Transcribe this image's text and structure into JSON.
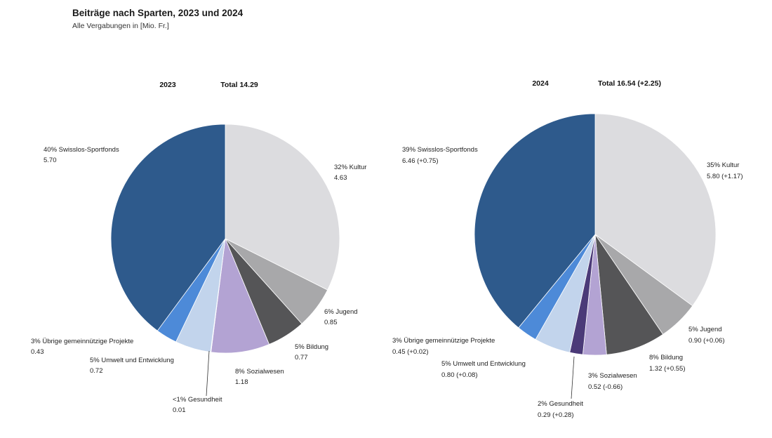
{
  "title": "Beiträge nach Sparten, 2023 und 2024",
  "subtitle": "Alle Vergabungen in [Mio. Fr.]",
  "chart_data": [
    {
      "type": "pie",
      "year": "2023",
      "total_label": "Total 14.29",
      "slices": [
        {
          "name": "Kultur",
          "percent_label": "32%",
          "value": 4.63,
          "value_label": "4.63",
          "color": "#dcdcdf"
        },
        {
          "name": "Jugend",
          "percent_label": "6%",
          "value": 0.85,
          "value_label": "0.85",
          "color": "#a8a8aa"
        },
        {
          "name": "Bildung",
          "percent_label": "5%",
          "value": 0.77,
          "value_label": "0.77",
          "color": "#555557"
        },
        {
          "name": "Sozialwesen",
          "percent_label": "8%",
          "value": 1.18,
          "value_label": "1.18",
          "color": "#b3a3d3"
        },
        {
          "name": "Gesundheit",
          "percent_label": "<1%",
          "value": 0.01,
          "value_label": "0.01",
          "color": "#4b3a78"
        },
        {
          "name": "Umwelt und Entwicklung",
          "percent_label": "5%",
          "value": 0.72,
          "value_label": "0.72",
          "color": "#c2d4ec"
        },
        {
          "name": "Übrige gemeinnützige Projekte",
          "percent_label": "3%",
          "value": 0.43,
          "value_label": "0.43",
          "color": "#4d8ad8"
        },
        {
          "name": "Swisslos-Sportfonds",
          "percent_label": "40%",
          "value": 5.7,
          "value_label": "5.70",
          "color": "#2e5a8c"
        }
      ]
    },
    {
      "type": "pie",
      "year": "2024",
      "total_label": "Total 16.54 (+2.25)",
      "slices": [
        {
          "name": "Kultur",
          "percent_label": "35%",
          "value": 5.8,
          "value_label": "5.80 (+1.17)",
          "color": "#dcdcdf"
        },
        {
          "name": "Jugend",
          "percent_label": "5%",
          "value": 0.9,
          "value_label": "0.90 (+0.06)",
          "color": "#a8a8aa"
        },
        {
          "name": "Bildung",
          "percent_label": "8%",
          "value": 1.32,
          "value_label": "1.32 (+0.55)",
          "color": "#555557"
        },
        {
          "name": "Sozialwesen",
          "percent_label": "3%",
          "value": 0.52,
          "value_label": "0.52 (-0.66)",
          "color": "#b3a3d3"
        },
        {
          "name": "Gesundheit",
          "percent_label": "2%",
          "value": 0.29,
          "value_label": "0.29 (+0.28)",
          "color": "#4b3a78"
        },
        {
          "name": "Umwelt und Entwicklung",
          "percent_label": "5%",
          "value": 0.8,
          "value_label": "0.80 (+0.08)",
          "color": "#c2d4ec"
        },
        {
          "name": "Übrige gemeinnützige Projekte",
          "percent_label": "3%",
          "value": 0.45,
          "value_label": "0.45 (+0.02)",
          "color": "#4d8ad8"
        },
        {
          "name": "Swisslos-Sportfonds",
          "percent_label": "39%",
          "value": 6.46,
          "value_label": "6.46 (+0.75)",
          "color": "#2e5a8c"
        }
      ]
    }
  ]
}
